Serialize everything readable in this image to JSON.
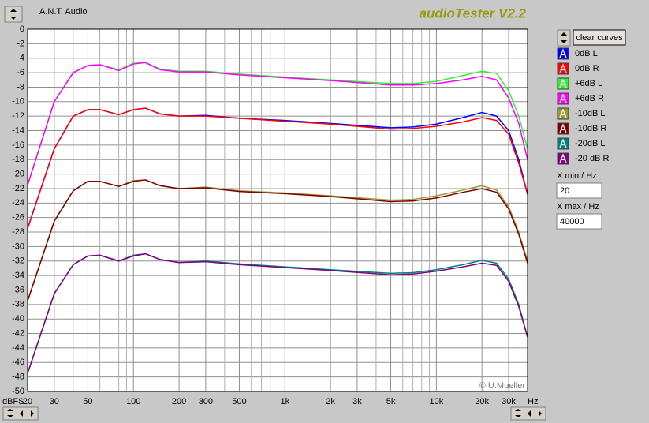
{
  "chart_data": {
    "type": "line",
    "title": "audioTester V2.2",
    "brand": "A.N.T. Audio",
    "copyright": "© U.Mueller",
    "xlabel": "Hz",
    "ylabel": "dBFS",
    "xscale": "log",
    "grid": true,
    "xlim": [
      20,
      40000
    ],
    "ylim": [
      -50,
      0
    ],
    "xticks": [
      20,
      30,
      50,
      100,
      200,
      300,
      500,
      {
        "value": 1000,
        "label": "1k"
      },
      {
        "value": 2000,
        "label": "2k"
      },
      {
        "value": 3000,
        "label": "3k"
      },
      {
        "value": 5000,
        "label": "5k"
      },
      {
        "value": 10000,
        "label": "10k"
      },
      {
        "value": 20000,
        "label": "20k"
      },
      {
        "value": 30000,
        "label": "30k"
      }
    ],
    "x_minor_grid": [
      40,
      60,
      70,
      80,
      90,
      400,
      600,
      700,
      800,
      900,
      4000,
      6000,
      7000,
      8000,
      9000
    ],
    "yticks": [
      0,
      -2,
      -4,
      -6,
      -8,
      -10,
      -12,
      -14,
      -16,
      -18,
      -20,
      -22,
      -24,
      -26,
      -28,
      -30,
      -32,
      -34,
      -36,
      -38,
      -40,
      -42,
      -44,
      -46,
      -48,
      -50
    ],
    "x": [
      20,
      30,
      40,
      50,
      60,
      80,
      100,
      120,
      150,
      200,
      300,
      500,
      1000,
      2000,
      5000,
      7000,
      10000,
      15000,
      20000,
      25000,
      30000,
      35000,
      40000
    ],
    "series": [
      {
        "name": "0dB L",
        "color": "#0000ff",
        "values": [
          -27.5,
          -16.5,
          -12,
          -11.1,
          -11.1,
          -11.8,
          -11.1,
          -10.9,
          -11.7,
          -12,
          -11.9,
          -12.3,
          -12.6,
          -13,
          -13.6,
          -13.5,
          -13.1,
          -12.2,
          -11.5,
          -12,
          -14,
          -18,
          -22.8
        ]
      },
      {
        "name": "0dB R",
        "color": "#ff0000",
        "values": [
          -27.5,
          -16.5,
          -12,
          -11.1,
          -11.1,
          -11.8,
          -11.1,
          -10.9,
          -11.7,
          -12,
          -12,
          -12.3,
          -12.7,
          -13.1,
          -13.8,
          -13.7,
          -13.4,
          -12.8,
          -12.2,
          -12.6,
          -14.5,
          -18.5,
          -22.8
        ]
      },
      {
        "name": "+6dB L",
        "color": "#33ee33",
        "values": [
          -21.5,
          -10,
          -6,
          -5,
          -4.9,
          -5.6,
          -4.7,
          -4.6,
          -5.5,
          -5.8,
          -5.8,
          -6.2,
          -6.6,
          -7,
          -7.5,
          -7.5,
          -7.2,
          -6.4,
          -5.8,
          -6.1,
          -8.5,
          -12,
          -16.5
        ]
      },
      {
        "name": "+6dB R",
        "color": "#ff00ff",
        "values": [
          -21.5,
          -10,
          -6,
          -5,
          -4.9,
          -5.7,
          -4.8,
          -4.6,
          -5.6,
          -5.9,
          -5.9,
          -6.3,
          -6.7,
          -7.1,
          -7.7,
          -7.7,
          -7.5,
          -7,
          -6.5,
          -7,
          -9.5,
          -13,
          -18
        ]
      },
      {
        "name": "-10dB L",
        "color": "#999933",
        "values": [
          -37.5,
          -26.5,
          -22.3,
          -21,
          -21,
          -21.7,
          -20.9,
          -20.8,
          -21.6,
          -22,
          -21.8,
          -22.3,
          -22.6,
          -23,
          -23.6,
          -23.5,
          -23,
          -22.2,
          -21.6,
          -22.2,
          -24.5,
          -28,
          -32
        ]
      },
      {
        "name": "-10dB R",
        "color": "#800000",
        "values": [
          -37.5,
          -26.5,
          -22.3,
          -21,
          -21,
          -21.7,
          -21,
          -20.8,
          -21.6,
          -22,
          -21.9,
          -22.4,
          -22.7,
          -23.1,
          -23.8,
          -23.7,
          -23.3,
          -22.5,
          -22,
          -22.5,
          -24.8,
          -28.3,
          -32.3
        ]
      },
      {
        "name": "-20dB L",
        "color": "#008080",
        "values": [
          -47.5,
          -36.5,
          -32.5,
          -31.3,
          -31.2,
          -32,
          -31.2,
          -31,
          -31.8,
          -32.2,
          -32,
          -32.4,
          -32.8,
          -33.2,
          -33.7,
          -33.6,
          -33.2,
          -32.5,
          -31.9,
          -32.3,
          -34.5,
          -38,
          -42.5
        ]
      },
      {
        "name": "-20 dB R",
        "color": "#800080",
        "values": [
          -47.5,
          -36.5,
          -32.5,
          -31.3,
          -31.2,
          -32,
          -31.3,
          -31,
          -31.8,
          -32.2,
          -32.1,
          -32.5,
          -32.9,
          -33.3,
          -33.9,
          -33.8,
          -33.4,
          -32.8,
          -32.3,
          -32.6,
          -34.8,
          -38.3,
          -42.5
        ]
      }
    ]
  },
  "ui": {
    "clear_button": "clear curves",
    "xmin_label": "X min / Hz",
    "xmax_label": "X max / Hz"
  }
}
